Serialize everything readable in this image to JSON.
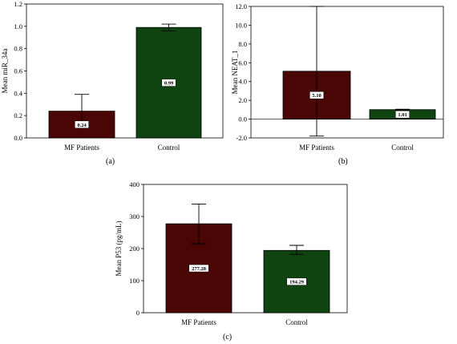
{
  "chart_data": [
    {
      "type": "bar",
      "panel": "(a)",
      "ylabel": "Mean miR_34a",
      "categories": [
        "MF Patients",
        "Control"
      ],
      "values": [
        0.24,
        0.99
      ],
      "data_labels": [
        "0.24",
        "0.99"
      ],
      "error_upper": [
        0.39,
        1.02
      ],
      "error_lower": [
        0.09,
        0.96
      ],
      "ylim": [
        0,
        1.2
      ],
      "yticks": [
        "0.0",
        "0.2",
        "0.4",
        "0.6",
        "0.8",
        "1.0",
        "1.2"
      ],
      "colors": [
        "#4a0505",
        "#0f4410"
      ]
    },
    {
      "type": "bar",
      "panel": "(b)",
      "ylabel": "Mean NEAT_1",
      "categories": [
        "MF Patients",
        "Control"
      ],
      "values": [
        5.1,
        1.01
      ],
      "data_labels": [
        "5.10",
        "1.01"
      ],
      "error_upper": [
        12.0,
        1.06
      ],
      "error_lower": [
        -1.8,
        0.96
      ],
      "ylim": [
        -2,
        12
      ],
      "yticks": [
        "-2.0",
        "0.0",
        "2.0",
        "4.0",
        "6.0",
        "8.0",
        "10.0",
        "12.0"
      ],
      "colors": [
        "#4a0505",
        "#0f4410"
      ]
    },
    {
      "type": "bar",
      "panel": "(c)",
      "ylabel": "Mean P53 (pg/mL)",
      "categories": [
        "MF Patients",
        "Control"
      ],
      "values": [
        277.28,
        194.29
      ],
      "data_labels": [
        "277.28",
        "194.29"
      ],
      "error_upper": [
        339,
        210
      ],
      "error_lower": [
        215,
        182
      ],
      "ylim": [
        0,
        400
      ],
      "yticks": [
        "0",
        "100",
        "200",
        "300",
        "400"
      ],
      "colors": [
        "#4a0505",
        "#0f4410"
      ]
    }
  ]
}
